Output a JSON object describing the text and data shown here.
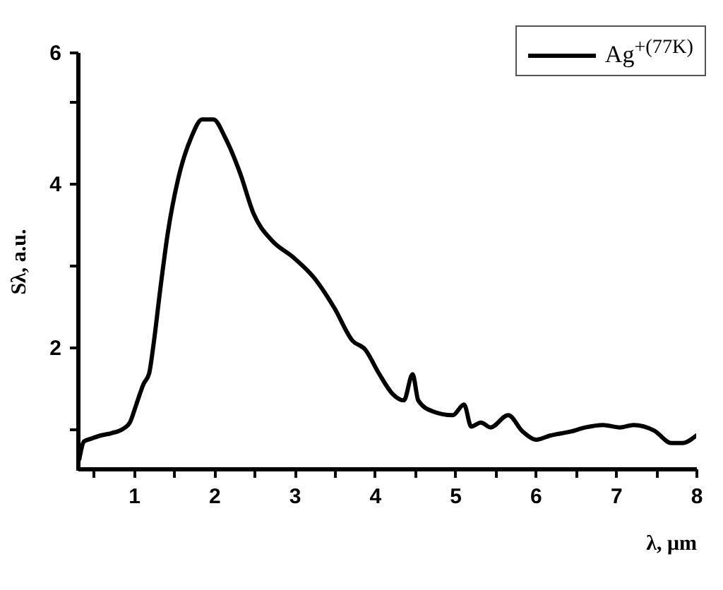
{
  "chart_data": {
    "type": "line",
    "xlabel": "λ, μm",
    "ylabel": "Sλ, a.u.",
    "x": [
      0.32,
      0.38,
      0.46,
      0.58,
      0.72,
      0.86,
      0.95,
      1.03,
      1.12,
      1.19,
      1.24,
      1.33,
      1.42,
      1.55,
      1.71,
      1.85,
      1.99,
      2.14,
      2.32,
      2.49,
      2.72,
      2.98,
      3.24,
      3.5,
      3.72,
      3.88,
      4.05,
      4.22,
      4.36,
      4.47,
      4.54,
      4.71,
      4.97,
      5.11,
      5.2,
      5.32,
      5.44,
      5.66,
      5.84,
      6.01,
      6.18,
      6.44,
      6.62,
      6.84,
      7.05,
      7.22,
      7.48,
      7.69,
      7.83,
      8.0
    ],
    "series": [
      {
        "name": "Ag$^{+(77K)}$",
        "color": "#000000",
        "values": [
          0.63,
          0.85,
          0.88,
          0.92,
          0.95,
          1.0,
          1.08,
          1.3,
          1.55,
          1.68,
          2.0,
          2.72,
          3.38,
          4.05,
          4.55,
          4.78,
          4.78,
          4.55,
          4.13,
          3.63,
          3.3,
          3.1,
          2.85,
          2.47,
          2.08,
          1.97,
          1.68,
          1.43,
          1.35,
          1.67,
          1.35,
          1.22,
          1.17,
          1.3,
          1.03,
          1.08,
          1.02,
          1.17,
          0.97,
          0.87,
          0.92,
          0.97,
          1.02,
          1.05,
          1.02,
          1.05,
          0.98,
          0.83,
          0.83,
          0.92
        ]
      }
    ],
    "xlim": [
      0.3,
      8
    ],
    "xticks": [
      {
        "value": 0.5,
        "label": null
      },
      1,
      {
        "value": 1.5,
        "label": null
      },
      2,
      {
        "value": 2.5,
        "label": null
      },
      3,
      {
        "value": 3.5,
        "label": null
      },
      4,
      {
        "value": 4.5,
        "label": null
      },
      5,
      {
        "value": 5.5,
        "label": null
      },
      6,
      {
        "value": 6.5,
        "label": null
      },
      7,
      {
        "value": 7.5,
        "label": null
      },
      8
    ],
    "ylim": [
      0.5,
      5.6
    ],
    "yticks": [
      {
        "value": 1,
        "label": null
      },
      2,
      {
        "value": 3,
        "label": null
      },
      4,
      {
        "value": 5,
        "label": null
      },
      {
        "value": 5.6,
        "label": "6"
      }
    ],
    "legend": "top right",
    "grid": false,
    "marker": "none",
    "line_style": "solid"
  }
}
